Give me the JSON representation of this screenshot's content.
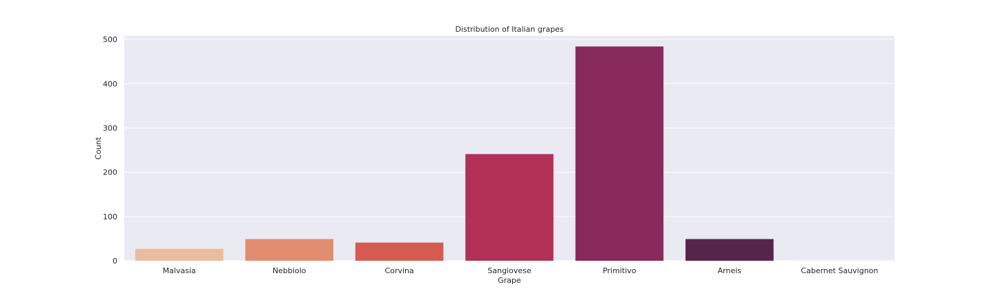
{
  "chart_data": {
    "type": "bar",
    "title": "Distribution of Italian grapes",
    "xlabel": "Grape",
    "ylabel": "Count",
    "categories": [
      "Malvasia",
      "Nebbiolo",
      "Corvina",
      "Sangiovese",
      "Primitivo",
      "Arneis",
      "Cabernet Sauvignon"
    ],
    "values": [
      27,
      49,
      41,
      241,
      484,
      49,
      3
    ],
    "colors": [
      "#e9bd9e",
      "#e28d6f",
      "#d55c51",
      "#b13157",
      "#872a5b",
      "#57244a",
      "#f5f0ef"
    ],
    "ylim": [
      0,
      508
    ],
    "yticks": [
      0,
      100,
      200,
      300,
      400,
      500
    ],
    "grid": true,
    "background": "#eaeaf2",
    "gridcolor": "#ffffff"
  }
}
